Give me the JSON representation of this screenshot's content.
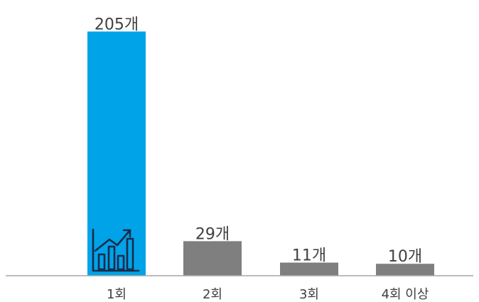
{
  "chart_data": {
    "type": "bar",
    "categories": [
      "1회",
      "2회",
      "3회",
      "4회 이상"
    ],
    "values": [
      205,
      29,
      11,
      10
    ],
    "data_labels": [
      "205개",
      "29개",
      "11개",
      "10개"
    ],
    "bar_colors": [
      "#00A3E8",
      "#7F7F7F",
      "#7F7F7F",
      "#7F7F7F"
    ],
    "ylim": [
      0,
      210
    ],
    "grid": false,
    "title": "",
    "xlabel": "",
    "ylabel": ""
  },
  "decoration": {
    "icon": "growth-chart-icon",
    "icon_color": "#1A2B4A"
  }
}
